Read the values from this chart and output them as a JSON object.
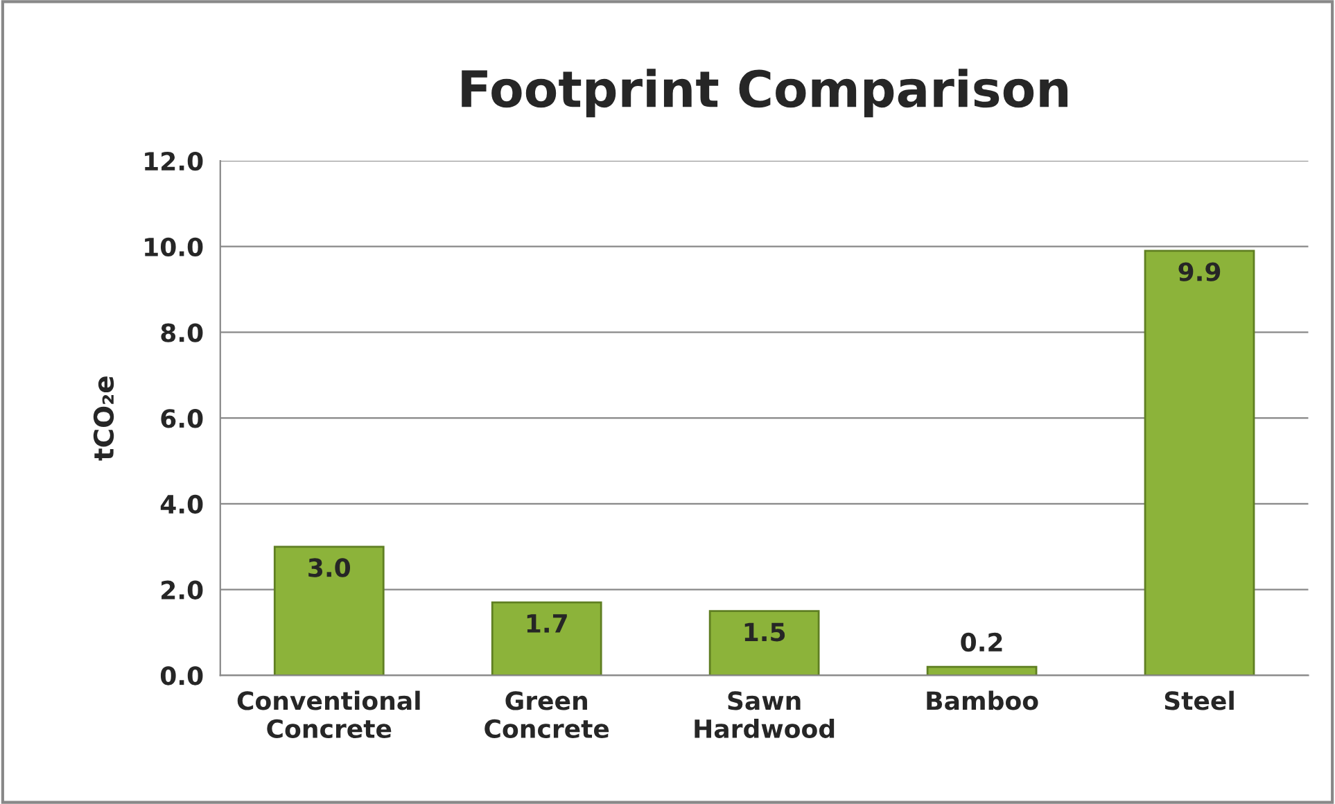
{
  "chart_data": {
    "type": "bar",
    "title": "Footprint Comparison",
    "ylabel": "tCO₂e",
    "categories": [
      "Conventional\nConcrete",
      "Green\nConcrete",
      "Sawn\nHardwood",
      "Bamboo",
      "Steel"
    ],
    "values": [
      3.0,
      1.7,
      1.5,
      0.2,
      9.9
    ],
    "value_labels": [
      "3.0",
      "1.7",
      "1.5",
      "0.2",
      "9.9"
    ],
    "color": "#8cb33a",
    "ylim": [
      0,
      12
    ],
    "yticks": [
      {
        "value": 0,
        "label": "0.0"
      },
      {
        "value": 2,
        "label": "2.0"
      },
      {
        "value": 4,
        "label": "4.0"
      },
      {
        "value": 6,
        "label": "6.0"
      },
      {
        "value": 8,
        "label": "8.0"
      },
      {
        "value": 10,
        "label": "10.0"
      },
      {
        "value": 12,
        "label": "12.0"
      }
    ],
    "grid": "y",
    "legend": false
  }
}
